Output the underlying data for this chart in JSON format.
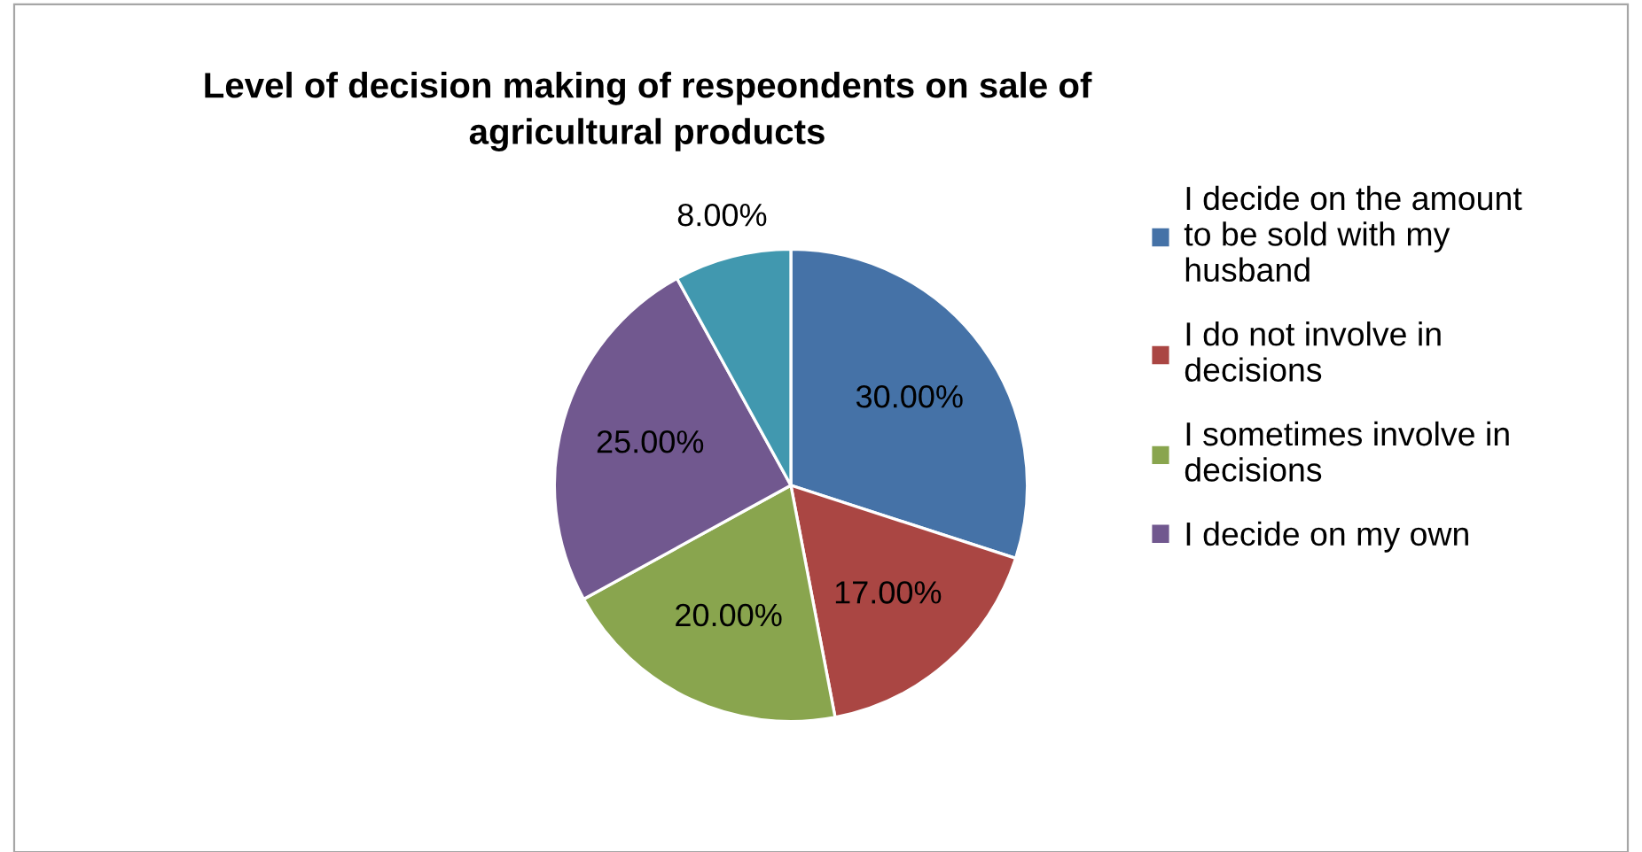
{
  "chart_data": {
    "type": "pie",
    "title": "Level of decision making of respeondents on sale of\nagricultural products",
    "categories": [
      "I decide on the amount\nto be sold with my\nhusband",
      "I do not involve in\ndecisions",
      "I sometimes involve in\ndecisions",
      "I decide on my own",
      null
    ],
    "values": [
      30,
      17,
      20,
      25,
      8
    ],
    "colors": [
      "#4572a7",
      "#aa4643",
      "#89a54e",
      "#71588f",
      "#4198af"
    ],
    "value_labels": [
      "30.00%",
      "17.00%",
      "20.00%",
      "25.00%",
      "8.00%"
    ],
    "legend": "right"
  }
}
